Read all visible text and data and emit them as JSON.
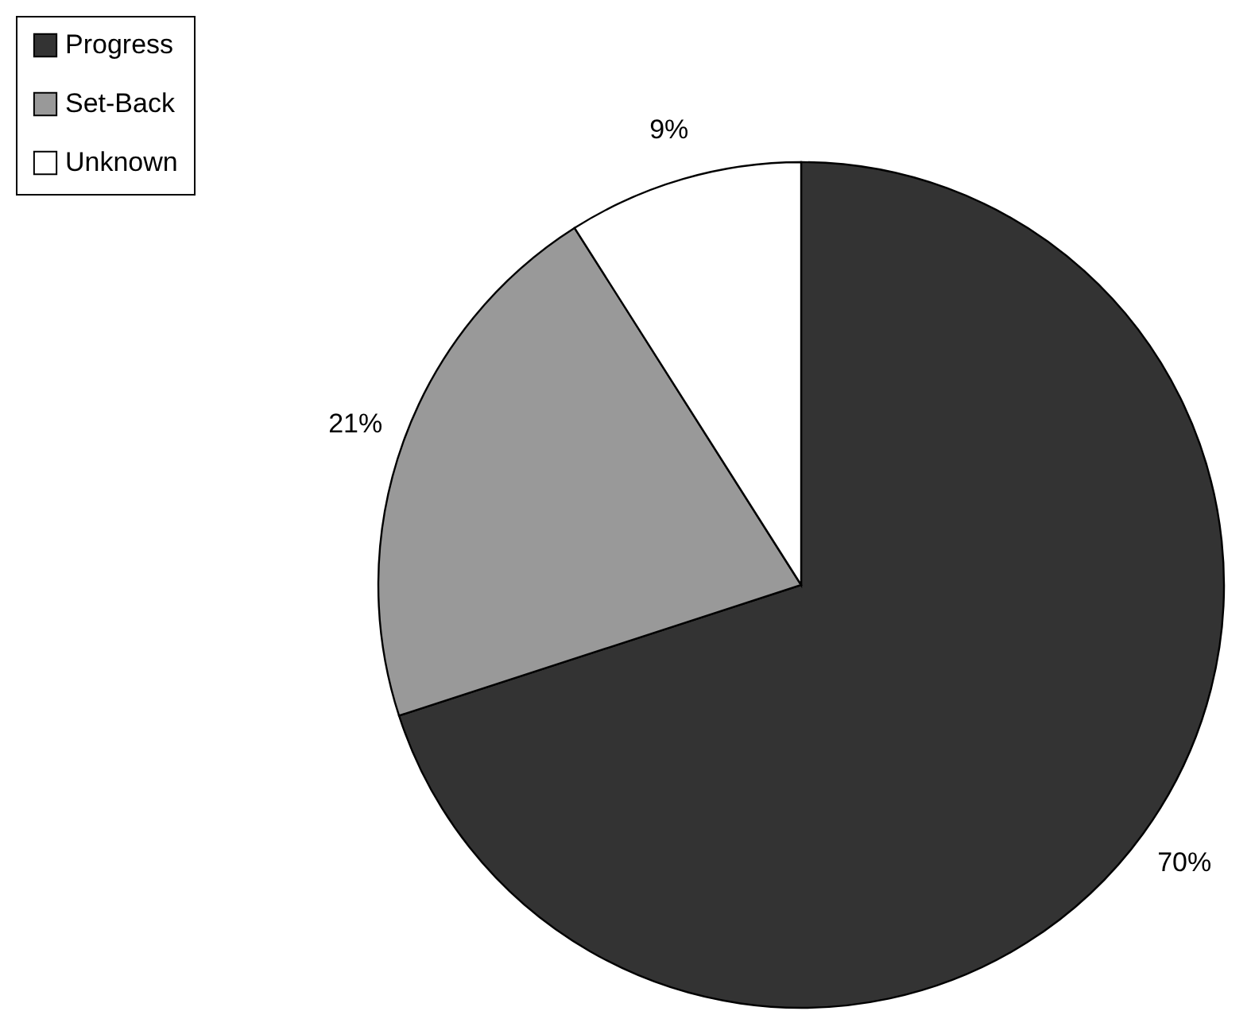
{
  "chart_data": {
    "type": "pie",
    "categories": [
      "Progress",
      "Set-Back",
      "Unknown"
    ],
    "values": [
      70,
      21,
      9
    ],
    "colors": [
      "#333333",
      "#999999",
      "#ffffff"
    ],
    "value_labels": [
      "70%",
      "21%",
      "9%"
    ],
    "legend": "top left"
  }
}
